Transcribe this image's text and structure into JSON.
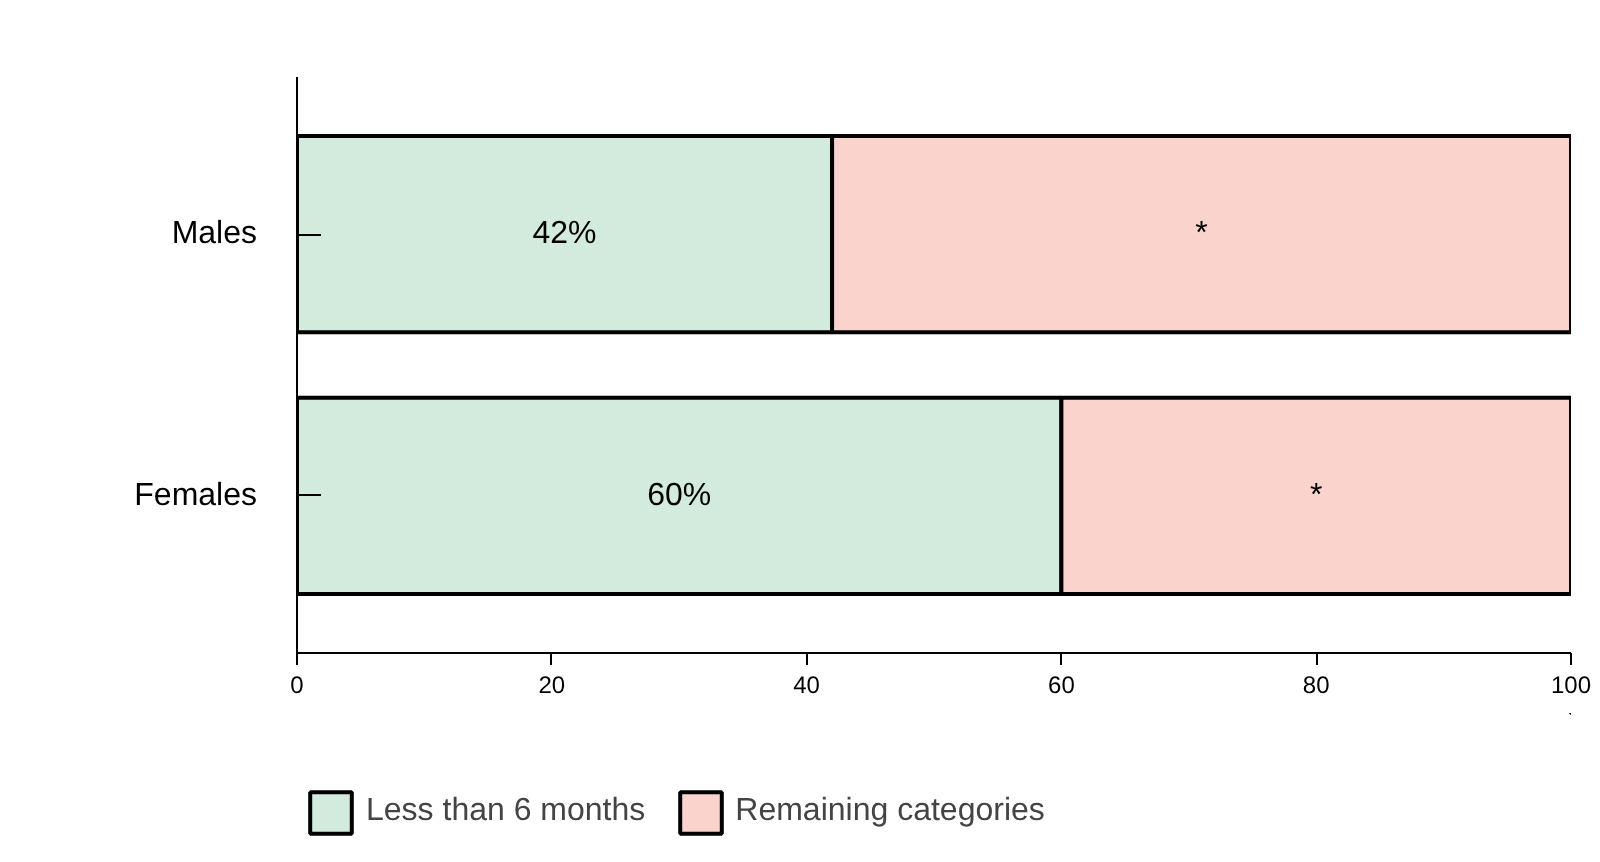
{
  "chart_data": {
    "type": "bar",
    "orientation": "horizontal",
    "stacked": true,
    "categories": [
      "Males",
      "Females"
    ],
    "series": [
      {
        "name": "Less than 6 months",
        "color": "#d3ebdc",
        "values": [
          42,
          60
        ],
        "value_labels": [
          "42%",
          "60%"
        ]
      },
      {
        "name": "Remaining categories",
        "color": "#fbd3cd",
        "values": [
          58,
          40
        ],
        "value_labels": [
          "*",
          "*"
        ]
      }
    ],
    "xlim": [
      0,
      100
    ],
    "xticks": [
      0,
      20,
      40,
      60,
      80,
      100
    ],
    "grid": false,
    "legend": "bottom left"
  }
}
